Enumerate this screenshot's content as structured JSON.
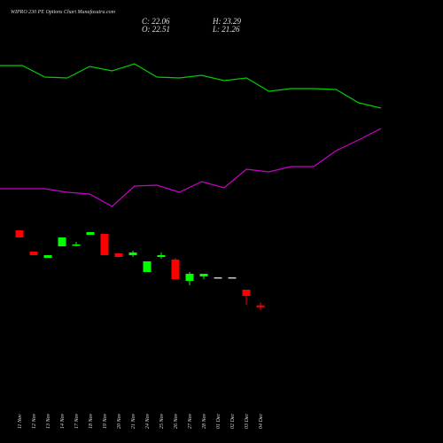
{
  "chart_data": {
    "type": "candlestick",
    "title": "WIPRO 230 PE Options Chart Munafasutra.com",
    "stats": [
      "C: 22.06",
      "O: 22.51",
      "H: 23.29",
      "L: 21.26"
    ],
    "categories": [
      "11 Nov",
      "12 Nov",
      "13 Nov",
      "14 Nov",
      "17 Nov",
      "18 Nov",
      "19 Nov",
      "20 Nov",
      "21 Nov",
      "24 Nov",
      "25 Nov",
      "26 Nov",
      "27 Nov",
      "28 Nov",
      "01 Dec",
      "02 Dec",
      "03 Dec",
      "04 Dec"
    ],
    "open": [
      41.33,
      36.0,
      34.44,
      37.33,
      37.56,
      40.22,
      40.44,
      35.56,
      35.11,
      30.89,
      34.67,
      34.0,
      28.67,
      29.78,
      29.56,
      29.56,
      26.44,
      22.51
    ],
    "high": [
      41.33,
      36.0,
      35.11,
      39.56,
      38.44,
      40.89,
      40.44,
      35.56,
      36.22,
      33.56,
      35.78,
      34.44,
      30.89,
      30.44,
      29.56,
      29.56,
      26.44,
      23.29
    ],
    "low": [
      39.56,
      35.11,
      34.44,
      37.33,
      37.33,
      40.22,
      35.11,
      34.67,
      34.67,
      30.89,
      34.22,
      29.11,
      27.56,
      29.11,
      29.56,
      29.56,
      22.67,
      21.26
    ],
    "close": [
      39.56,
      35.11,
      35.11,
      39.56,
      37.78,
      40.89,
      35.11,
      34.67,
      35.78,
      33.56,
      35.11,
      29.11,
      30.44,
      30.44,
      29.56,
      29.56,
      24.89,
      22.06
    ],
    "up_color": "#00ff00",
    "down_color": "#ff0000",
    "flat_color": "#c8c8c8",
    "lines": [
      {
        "color": "#00cc00",
        "values": [
          82.67,
          82.67,
          79.78,
          79.56,
          82.44,
          81.33,
          83.11,
          79.78,
          79.56,
          80.22,
          78.89,
          79.56,
          76.22,
          76.89,
          76.89,
          76.67,
          73.33,
          72.0
        ]
      },
      {
        "color": "#cc00cc",
        "values": [
          51.78,
          51.78,
          51.78,
          50.89,
          50.44,
          47.33,
          52.44,
          52.67,
          50.89,
          53.56,
          52.0,
          56.67,
          56.0,
          57.33,
          57.33,
          61.33,
          64.0,
          66.89
        ]
      }
    ],
    "ylim": [
      4,
      94
    ]
  }
}
